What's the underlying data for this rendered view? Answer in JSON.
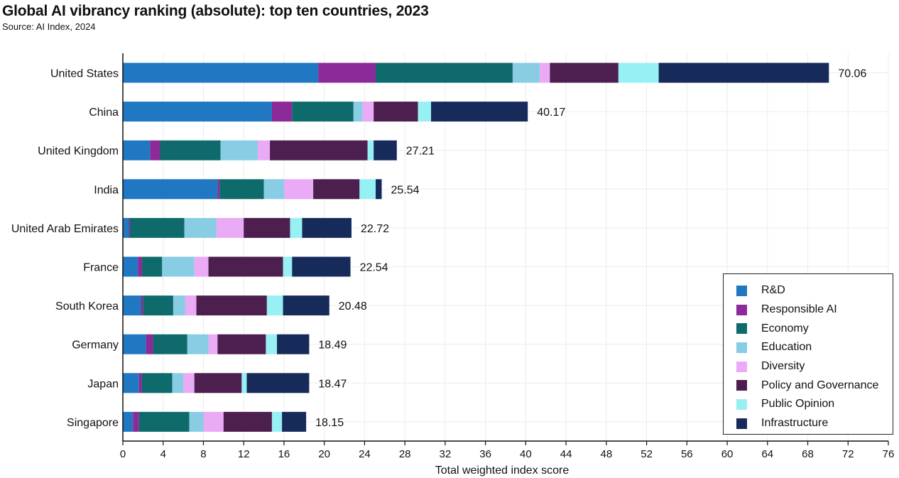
{
  "header": {
    "title": "Global AI vibrancy ranking (absolute): top ten countries, 2023",
    "source": "Source: AI Index, 2024"
  },
  "chart_data": {
    "type": "bar",
    "orientation": "horizontal",
    "stacked": true,
    "title": "Global AI vibrancy ranking (absolute): top ten countries, 2023",
    "xlabel": "Total weighted index score",
    "ylabel": "",
    "xlim": [
      0,
      76
    ],
    "xticks": [
      0,
      4,
      8,
      12,
      16,
      20,
      24,
      28,
      32,
      36,
      40,
      44,
      48,
      52,
      56,
      60,
      64,
      68,
      72,
      76
    ],
    "grid": true,
    "legend_position": "bottom-right",
    "categories": [
      "United States",
      "China",
      "United Kingdom",
      "India",
      "United Arab Emirates",
      "France",
      "South Korea",
      "Germany",
      "Japan",
      "Singapore"
    ],
    "totals": [
      "70.06",
      "40.17",
      "27.21",
      "25.54",
      "22.72",
      "22.54",
      "20.48",
      "18.49",
      "18.47",
      "18.15"
    ],
    "series": [
      {
        "name": "R&D",
        "color": "#1f78c1",
        "values": [
          19.4,
          14.8,
          2.7,
          9.4,
          0.6,
          1.5,
          1.8,
          2.3,
          1.6,
          1.0
        ]
      },
      {
        "name": "Responsible AI",
        "color": "#8b2a98",
        "values": [
          5.7,
          2.0,
          1.0,
          0.2,
          0.1,
          0.4,
          0.2,
          0.7,
          0.3,
          0.6
        ]
      },
      {
        "name": "Economy",
        "color": "#0f6b6b",
        "values": [
          13.6,
          6.1,
          6.0,
          4.4,
          5.4,
          2.0,
          3.0,
          3.4,
          3.0,
          5.0
        ]
      },
      {
        "name": "Education",
        "color": "#88cde3",
        "values": [
          2.7,
          0.9,
          3.7,
          2.0,
          3.2,
          3.2,
          1.2,
          2.1,
          1.1,
          1.4
        ]
      },
      {
        "name": "Diversity",
        "color": "#eaaaf6",
        "values": [
          1.0,
          1.1,
          1.2,
          2.9,
          2.7,
          1.4,
          1.1,
          0.9,
          1.1,
          2.0
        ]
      },
      {
        "name": "Policy and Governance",
        "color": "#4c1f4e",
        "values": [
          6.8,
          4.4,
          9.7,
          4.6,
          4.6,
          7.4,
          7.0,
          4.8,
          4.7,
          4.8
        ]
      },
      {
        "name": "Public Opinion",
        "color": "#97f0f4",
        "values": [
          4.0,
          1.3,
          0.6,
          1.6,
          1.2,
          0.9,
          1.6,
          1.1,
          0.5,
          1.0
        ]
      },
      {
        "name": "Infrastructure",
        "color": "#172b5b",
        "values": [
          16.9,
          9.6,
          2.3,
          0.6,
          4.9,
          5.8,
          4.6,
          3.2,
          6.2,
          2.4
        ]
      }
    ]
  }
}
